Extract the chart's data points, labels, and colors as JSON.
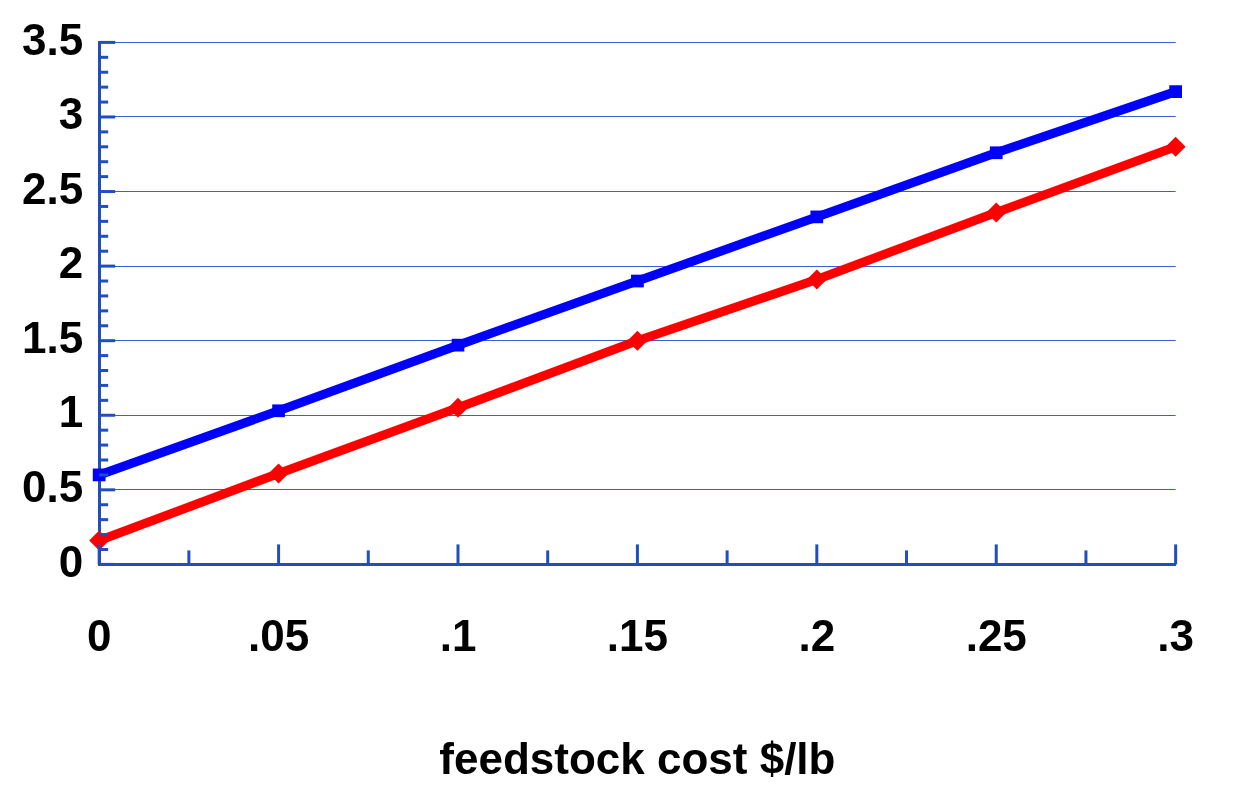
{
  "chart_data": {
    "type": "line",
    "xlabel": "feedstock cost $/lb",
    "x": [
      0,
      0.05,
      0.1,
      0.15,
      0.2,
      0.25,
      0.3
    ],
    "series": [
      {
        "color": "#0000ff",
        "marker": "square",
        "values": [
          0.6,
          1.03,
          1.47,
          1.9,
          2.33,
          2.76,
          3.17
        ]
      },
      {
        "color": "#ff0000",
        "marker": "diamond",
        "values": [
          0.16,
          0.61,
          1.05,
          1.5,
          1.91,
          2.36,
          2.8
        ]
      }
    ],
    "xlim": [
      0,
      0.3
    ],
    "xticks": [
      0,
      {
        "value": 0.025,
        "label": null
      },
      {
        "value": 0.05,
        "label": ".05"
      },
      {
        "value": 0.075,
        "label": null
      },
      {
        "value": 0.1,
        "label": ".1"
      },
      {
        "value": 0.125,
        "label": null
      },
      {
        "value": 0.15,
        "label": ".15"
      },
      {
        "value": 0.175,
        "label": null
      },
      {
        "value": 0.2,
        "label": ".2"
      },
      {
        "value": 0.225,
        "label": null
      },
      {
        "value": 0.25,
        "label": ".25"
      },
      {
        "value": 0.275,
        "label": null
      },
      {
        "value": 0.3,
        "label": ".3"
      }
    ],
    "ylim": [
      0,
      3.5
    ],
    "yticks": [
      0,
      {
        "value": 0.1,
        "label": null
      },
      {
        "value": 0.2,
        "label": null
      },
      {
        "value": 0.3,
        "label": null
      },
      {
        "value": 0.4,
        "label": null
      },
      0.5,
      {
        "value": 0.6,
        "label": null
      },
      {
        "value": 0.7,
        "label": null
      },
      {
        "value": 0.8,
        "label": null
      },
      {
        "value": 0.9,
        "label": null
      },
      1,
      {
        "value": 1.1,
        "label": null
      },
      {
        "value": 1.2,
        "label": null
      },
      {
        "value": 1.3,
        "label": null
      },
      {
        "value": 1.4,
        "label": null
      },
      1.5,
      {
        "value": 1.6,
        "label": null
      },
      {
        "value": 1.7,
        "label": null
      },
      {
        "value": 1.8,
        "label": null
      },
      {
        "value": 1.9,
        "label": null
      },
      2,
      {
        "value": 2.1,
        "label": null
      },
      {
        "value": 2.2,
        "label": null
      },
      {
        "value": 2.3,
        "label": null
      },
      {
        "value": 2.4,
        "label": null
      },
      2.5,
      {
        "value": 2.6,
        "label": null
      },
      {
        "value": 2.7,
        "label": null
      },
      {
        "value": 2.8,
        "label": null
      },
      {
        "value": 2.9,
        "label": null
      },
      3,
      {
        "value": 3.1,
        "label": null
      },
      {
        "value": 3.2,
        "label": null
      },
      {
        "value": 3.3,
        "label": null
      },
      {
        "value": 3.4,
        "label": null
      },
      3.5
    ],
    "grid": "y",
    "line_style": "solid"
  }
}
